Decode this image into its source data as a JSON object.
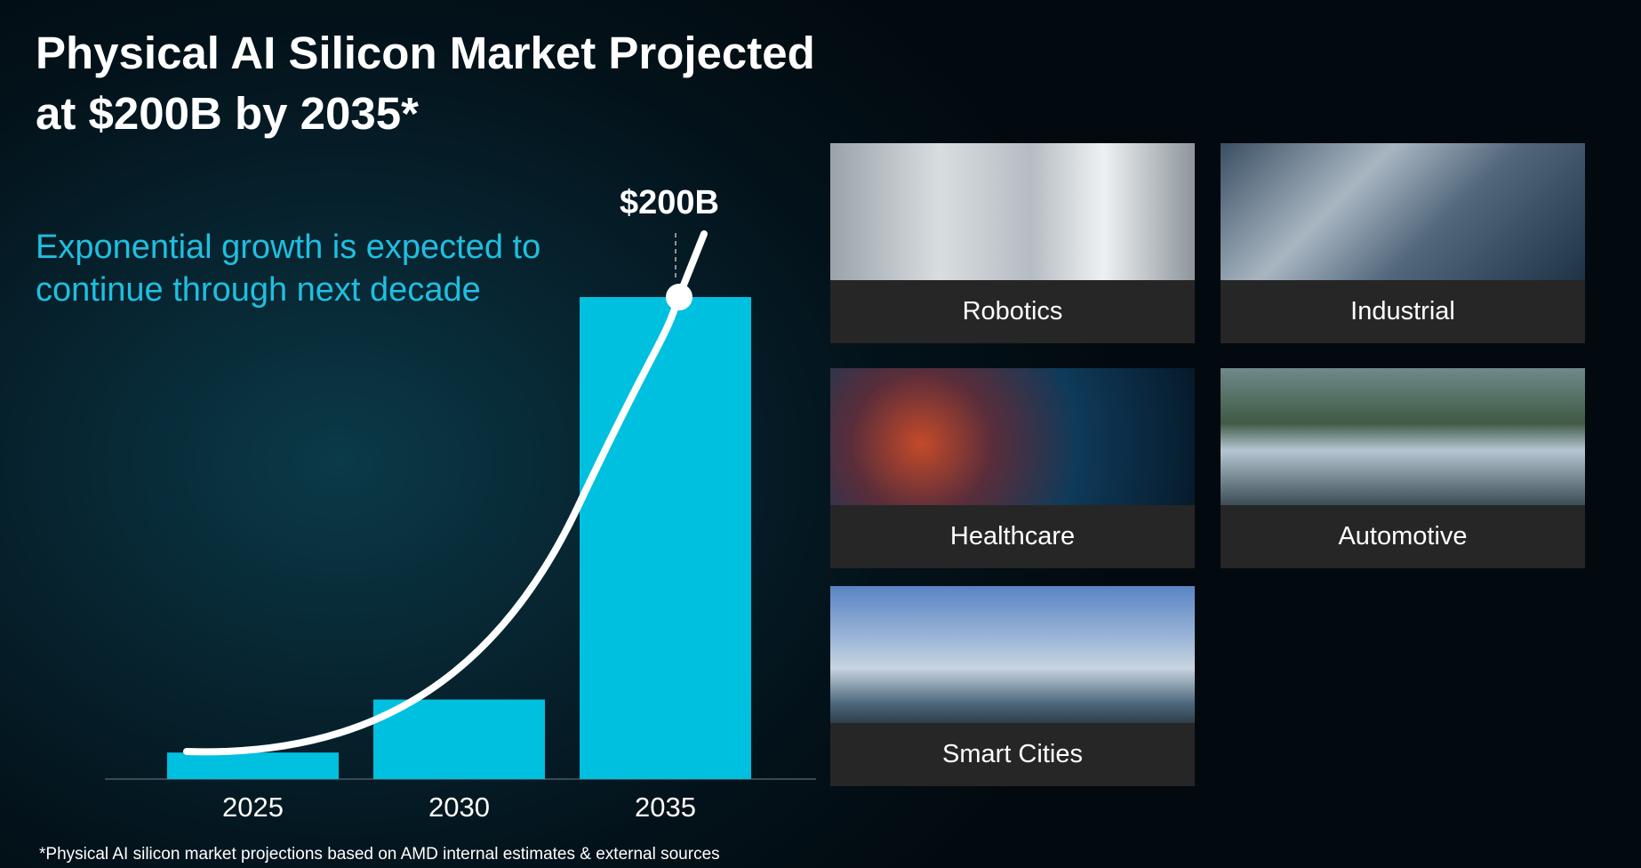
{
  "header": {
    "title_lines": [
      "Physical AI Silicon Market Projected",
      "at $200B by 2035*"
    ],
    "subtitle_lines": [
      "Exponential growth is expected to",
      "continue through next decade"
    ]
  },
  "chart_data": {
    "type": "bar",
    "categories": [
      "2025",
      "2030",
      "2035"
    ],
    "values": [
      11,
      33,
      200
    ],
    "value_labels": [
      null,
      null,
      "$200B"
    ],
    "color": "#00c0e0"
  },
  "panels": [
    {
      "label": "Robotics"
    },
    {
      "label": "Industrial"
    },
    {
      "label": "Healthcare"
    },
    {
      "label": "Automotive"
    },
    {
      "label": "Smart Cities"
    }
  ],
  "footnote": "*Physical AI silicon market projections based on AMD internal estimates & external sources"
}
